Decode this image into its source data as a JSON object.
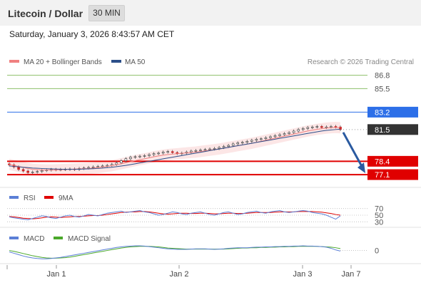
{
  "header": {
    "title": "Litecoin / Dollar",
    "interval": "30 MIN"
  },
  "timestamp": "Saturday, January 3, 2026 8:43:57 AM CET",
  "main_legend": {
    "ma20": "MA 20 + Bollinger Bands",
    "ma50": "MA 50",
    "credit": "Research © 2026 Trading Central"
  },
  "rsi_legend": {
    "rsi": "RSI",
    "ma9": "9MA"
  },
  "macd_legend": {
    "macd": "MACD",
    "signal": "MACD Signal"
  },
  "colors": {
    "ma20": "#f08080",
    "ma50": "#2c4f8a",
    "resistance_line": "#8dbf6a",
    "pivot_line": "#2d6fe8",
    "support_line": "#e00000",
    "last_price_label": "#333333",
    "arrow": "#2a5aa0",
    "rsi": "#5b7fd6",
    "rsi_ma": "#e00000",
    "macd": "#5b7fd6",
    "macd_signal": "#4aa82a"
  },
  "chart_data": [
    {
      "type": "candlestick",
      "panel": "price",
      "x_ticks": [
        "Jan 1",
        "Jan 2",
        "Jan 3",
        "Jan 7"
      ],
      "ylim": [
        76.2,
        87.4
      ],
      "close": [
        78.05,
        77.85,
        77.6,
        77.45,
        77.3,
        77.35,
        77.4,
        77.5,
        77.55,
        77.6,
        77.58,
        77.6,
        77.62,
        77.65,
        77.6,
        77.7,
        77.75,
        77.8,
        77.85,
        77.9,
        77.95,
        78.0,
        78.1,
        78.25,
        78.45,
        78.65,
        78.8,
        78.85,
        78.9,
        78.95,
        79.05,
        79.15,
        79.2,
        79.3,
        79.35,
        79.25,
        79.15,
        79.2,
        79.3,
        79.4,
        79.45,
        79.5,
        79.55,
        79.6,
        79.65,
        79.75,
        79.85,
        79.95,
        80.1,
        80.2,
        80.25,
        80.35,
        80.45,
        80.55,
        80.6,
        80.7,
        80.8,
        80.9,
        81.0,
        81.1,
        81.2,
        81.35,
        81.5,
        81.6,
        81.7,
        81.75,
        81.8,
        81.7,
        81.75,
        81.8,
        81.75,
        81.5
      ],
      "levels": [
        {
          "value": 86.8,
          "label": "86.8",
          "kind": "resistance"
        },
        {
          "value": 85.5,
          "label": "85.5",
          "kind": "resistance"
        },
        {
          "value": 83.2,
          "label": "83.2",
          "kind": "pivot"
        },
        {
          "value": 81.5,
          "label": "81.5",
          "kind": "last"
        },
        {
          "value": 78.4,
          "label": "78.4",
          "kind": "support"
        },
        {
          "value": 77.1,
          "label": "77.1",
          "kind": "support"
        }
      ],
      "projection_target": 77.1,
      "ma20": [
        78.1,
        78.0,
        77.9,
        77.8,
        77.7,
        77.62,
        77.58,
        77.56,
        77.55,
        77.55,
        77.56,
        77.58,
        77.6,
        77.62,
        77.64,
        77.66,
        77.68,
        77.7,
        77.74,
        77.78,
        77.84,
        77.9,
        77.98,
        78.06,
        78.16,
        78.26,
        78.36,
        78.46,
        78.56,
        78.64,
        78.74,
        78.84,
        78.92,
        79.0,
        79.06,
        79.1,
        79.14,
        79.18,
        79.22,
        79.26,
        79.3,
        79.36,
        79.42,
        79.48,
        79.54,
        79.6,
        79.68,
        79.76,
        79.84,
        79.92,
        80.0,
        80.08,
        80.16,
        80.26,
        80.36,
        80.46,
        80.56,
        80.66,
        80.76,
        80.86,
        80.96,
        81.06,
        81.16,
        81.26,
        81.36,
        81.44,
        81.52,
        81.58,
        81.64,
        81.68,
        81.7,
        81.68
      ],
      "ma50": [
        77.95,
        77.9,
        77.86,
        77.82,
        77.78,
        77.74,
        77.72,
        77.7,
        77.68,
        77.66,
        77.64,
        77.63,
        77.62,
        77.62,
        77.62,
        77.63,
        77.64,
        77.66,
        77.68,
        77.7,
        77.74,
        77.78,
        77.82,
        77.88,
        77.94,
        78.0,
        78.08,
        78.16,
        78.24,
        78.32,
        78.4,
        78.48,
        78.56,
        78.64,
        78.72,
        78.8,
        78.88,
        78.96,
        79.04,
        79.12,
        79.2,
        79.28,
        79.36,
        79.44,
        79.52,
        79.6,
        79.68,
        79.76,
        79.84,
        79.92,
        80.0,
        80.08,
        80.16,
        80.24,
        80.32,
        80.4,
        80.48,
        80.56,
        80.64,
        80.72,
        80.8,
        80.88,
        80.96,
        81.04,
        81.12,
        81.2,
        81.28,
        81.36,
        81.42,
        81.46,
        81.5,
        81.54
      ],
      "band_width": 0.55
    },
    {
      "type": "line",
      "panel": "rsi",
      "ylim": [
        20,
        80
      ],
      "y_ticks": [
        70,
        50,
        30
      ],
      "series": [
        {
          "name": "RSI",
          "values": [
            45,
            42,
            40,
            38,
            36,
            40,
            44,
            48,
            46,
            42,
            40,
            44,
            48,
            50,
            46,
            44,
            48,
            52,
            50,
            48,
            52,
            56,
            58,
            60,
            62,
            58,
            60,
            62,
            64,
            60,
            58,
            54,
            50,
            52,
            56,
            60,
            58,
            54,
            52,
            56,
            58,
            60,
            56,
            52,
            50,
            54,
            58,
            60,
            56,
            52,
            54,
            58,
            60,
            62,
            58,
            56,
            60,
            62,
            64,
            60,
            58,
            60,
            62,
            64,
            62,
            58,
            56,
            54,
            50,
            44,
            38,
            48
          ]
        },
        {
          "name": "9MA",
          "values": [
            46,
            45,
            43,
            41,
            40,
            39,
            40,
            42,
            44,
            45,
            44,
            43,
            44,
            45,
            46,
            46,
            47,
            48,
            49,
            49,
            50,
            52,
            54,
            56,
            58,
            59,
            60,
            60,
            61,
            61,
            60,
            58,
            56,
            54,
            53,
            54,
            55,
            56,
            56,
            55,
            55,
            56,
            56,
            55,
            54,
            54,
            55,
            56,
            56,
            55,
            55,
            56,
            57,
            58,
            58,
            58,
            58,
            59,
            60,
            60,
            60,
            60,
            61,
            61,
            61,
            61,
            60,
            59,
            57,
            55,
            52,
            50
          ]
        }
      ]
    },
    {
      "type": "line",
      "panel": "macd",
      "ylim": [
        -0.45,
        0.35
      ],
      "y_ticks": [
        0
      ],
      "series": [
        {
          "name": "MACD",
          "values": [
            -0.05,
            -0.1,
            -0.15,
            -0.2,
            -0.24,
            -0.27,
            -0.29,
            -0.3,
            -0.3,
            -0.29,
            -0.27,
            -0.25,
            -0.22,
            -0.19,
            -0.16,
            -0.13,
            -0.1,
            -0.07,
            -0.04,
            -0.01,
            0.02,
            0.05,
            0.08,
            0.11,
            0.13,
            0.15,
            0.16,
            0.17,
            0.17,
            0.16,
            0.14,
            0.12,
            0.1,
            0.08,
            0.06,
            0.05,
            0.04,
            0.04,
            0.04,
            0.05,
            0.06,
            0.06,
            0.06,
            0.05,
            0.04,
            0.05,
            0.06,
            0.08,
            0.09,
            0.1,
            0.1,
            0.1,
            0.11,
            0.12,
            0.12,
            0.13,
            0.13,
            0.14,
            0.14,
            0.15,
            0.15,
            0.16,
            0.16,
            0.17,
            0.16,
            0.16,
            0.15,
            0.14,
            0.12,
            0.08,
            0.02,
            -0.02
          ]
        },
        {
          "name": "MACD Signal",
          "values": [
            0.0,
            -0.03,
            -0.07,
            -0.11,
            -0.15,
            -0.19,
            -0.22,
            -0.25,
            -0.27,
            -0.28,
            -0.28,
            -0.27,
            -0.26,
            -0.24,
            -0.21,
            -0.18,
            -0.15,
            -0.12,
            -0.09,
            -0.06,
            -0.03,
            0.0,
            0.03,
            0.06,
            0.09,
            0.11,
            0.13,
            0.14,
            0.15,
            0.15,
            0.15,
            0.14,
            0.13,
            0.11,
            0.09,
            0.08,
            0.07,
            0.06,
            0.05,
            0.05,
            0.05,
            0.05,
            0.05,
            0.05,
            0.05,
            0.05,
            0.05,
            0.06,
            0.07,
            0.08,
            0.09,
            0.09,
            0.1,
            0.1,
            0.11,
            0.11,
            0.12,
            0.12,
            0.13,
            0.13,
            0.14,
            0.14,
            0.15,
            0.15,
            0.15,
            0.15,
            0.15,
            0.14,
            0.13,
            0.12,
            0.1,
            0.07
          ]
        }
      ]
    }
  ]
}
